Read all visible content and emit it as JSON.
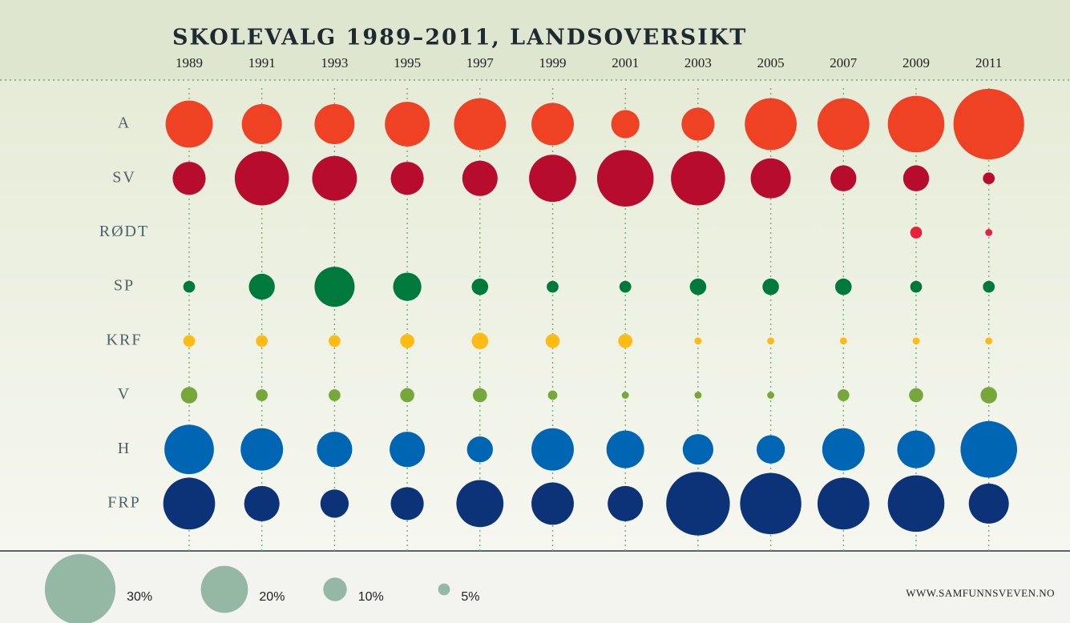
{
  "chart_data": {
    "type": "bubble",
    "title": "SKOLEVALG 1989–2011, LANDSOVERSIKT",
    "categories": [
      "1989",
      "1991",
      "1993",
      "1995",
      "1997",
      "1999",
      "2001",
      "2003",
      "2005",
      "2007",
      "2009",
      "2011"
    ],
    "series": [
      {
        "name": "A",
        "color": "#ef4123",
        "values": [
          20,
          17,
          17,
          19,
          22,
          18,
          12,
          14,
          22,
          22,
          24,
          30
        ]
      },
      {
        "name": "SV",
        "color": "#b70c2e",
        "values": [
          14,
          23,
          19,
          14,
          15,
          20,
          24,
          23,
          17,
          11,
          11,
          5
        ]
      },
      {
        "name": "RØDT",
        "color": "#e8203a",
        "values": [
          null,
          null,
          null,
          null,
          null,
          null,
          null,
          null,
          null,
          null,
          5,
          3
        ]
      },
      {
        "name": "SP",
        "color": "#00793c",
        "values": [
          5,
          11,
          17,
          12,
          7,
          5,
          5,
          7,
          7,
          7,
          5,
          5
        ]
      },
      {
        "name": "KRF",
        "color": "#fdbb13",
        "values": [
          5,
          5,
          5,
          6,
          7,
          6,
          6,
          3,
          3,
          3,
          3,
          3
        ]
      },
      {
        "name": "V",
        "color": "#76a73b",
        "values": [
          7,
          5,
          5,
          6,
          6,
          4,
          3,
          3,
          3,
          5,
          6,
          7
        ]
      },
      {
        "name": "H",
        "color": "#0066b3",
        "values": [
          21,
          18,
          15,
          15,
          11,
          18,
          16,
          13,
          12,
          18,
          16,
          24
        ]
      },
      {
        "name": "FRP",
        "color": "#0c3378",
        "values": [
          22,
          15,
          12,
          14,
          20,
          18,
          15,
          27,
          26,
          22,
          24,
          17
        ]
      }
    ],
    "size_legend": [
      {
        "value": 30,
        "label": "30%"
      },
      {
        "value": 20,
        "label": "20%"
      },
      {
        "value": 10,
        "label": "10%"
      },
      {
        "value": 5,
        "label": "5%"
      }
    ],
    "legend_color": "#94b8a4",
    "source": "WWW.SAMFUNNSVEVEN.NO"
  }
}
